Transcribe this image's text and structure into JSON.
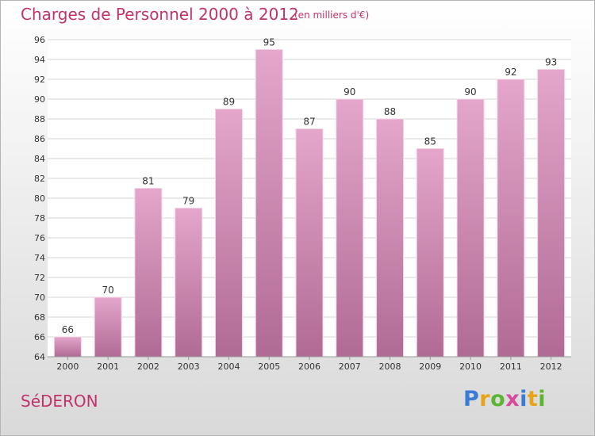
{
  "header": {
    "title": "Charges de Personnel 2000 à 2012",
    "subtitle": "(en milliers d'€)"
  },
  "footer": {
    "commune": "SéDERON",
    "logo": {
      "text": "Proxiti",
      "letters": [
        {
          "char": "P",
          "color": "#3a7bd5"
        },
        {
          "char": "r",
          "color": "#e8a317"
        },
        {
          "char": "o",
          "color": "#5bb531"
        },
        {
          "char": "x",
          "color": "#d64b9c"
        },
        {
          "char": "i",
          "color": "#3a7bd5"
        },
        {
          "char": "t",
          "color": "#e8a317"
        },
        {
          "char": "i",
          "color": "#5bb531"
        }
      ]
    }
  },
  "colors": {
    "accent": "#c0336c",
    "bar_top": "#e4a6cb",
    "bar_bottom": "#b06b94",
    "grid": "#d6d6d6"
  },
  "chart_data": {
    "type": "bar",
    "title": "Charges de Personnel 2000 à 2012",
    "subtitle": "(en milliers d'€)",
    "xlabel": "",
    "ylabel": "",
    "categories": [
      "2000",
      "2001",
      "2002",
      "2003",
      "2004",
      "2005",
      "2006",
      "2007",
      "2008",
      "2009",
      "2010",
      "2011",
      "2012"
    ],
    "values": [
      66,
      70,
      81,
      79,
      89,
      95,
      87,
      90,
      88,
      85,
      90,
      92,
      93
    ],
    "ylim": [
      64,
      96
    ],
    "ytick_step": 2,
    "grid": true,
    "legend": "none"
  }
}
